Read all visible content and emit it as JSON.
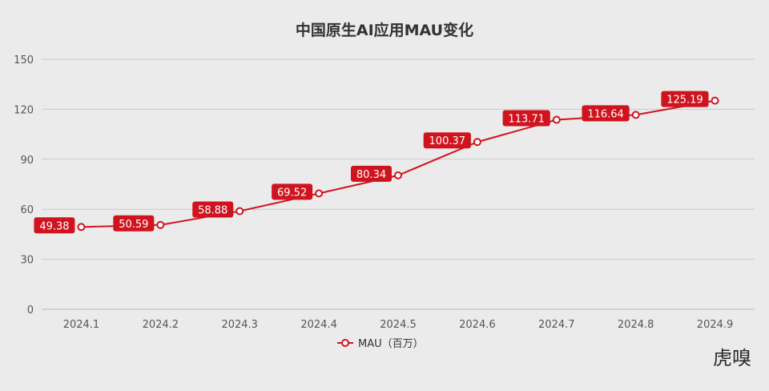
{
  "chart_data": {
    "type": "line",
    "title": "中国原生AI应用MAU变化",
    "xlabel": "",
    "ylabel": "",
    "categories": [
      "2024.1",
      "2024.2",
      "2024.3",
      "2024.4",
      "2024.5",
      "2024.6",
      "2024.7",
      "2024.8",
      "2024.9"
    ],
    "series": [
      {
        "name": "MAU（百万）",
        "values": [
          49.38,
          50.59,
          58.88,
          69.52,
          80.34,
          100.37,
          113.71,
          116.64,
          125.19
        ],
        "color": "#d0141f"
      }
    ],
    "data_labels": [
      "49.38",
      "50.59",
      "58.88",
      "69.52",
      "80.34",
      "100.37",
      "113.71",
      "116.64",
      "125.19"
    ],
    "ylim": [
      0,
      150
    ],
    "yticks": [
      "0",
      "30",
      "60",
      "90",
      "120",
      "150"
    ],
    "grid": true,
    "legend_position": "bottom"
  },
  "watermark": "虎嗅"
}
